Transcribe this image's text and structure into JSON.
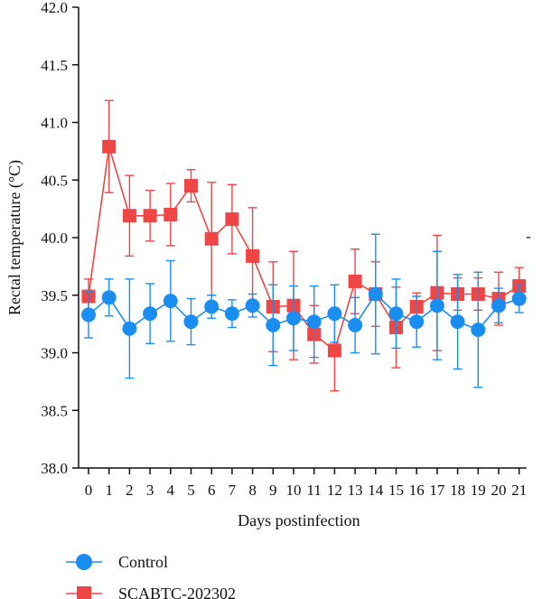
{
  "chart_data": {
    "type": "line",
    "xlabel": "Days postinfection",
    "ylabel": "Rectal temperature (°C)",
    "ylim": [
      38.0,
      42.0
    ],
    "yticks": [
      "38.0",
      "38.5",
      "39.0",
      "39.5",
      "40.0",
      "40.5",
      "41.0",
      "41.5",
      "42.0"
    ],
    "x": [
      0,
      1,
      2,
      3,
      4,
      5,
      6,
      7,
      8,
      9,
      10,
      11,
      12,
      13,
      14,
      15,
      16,
      17,
      18,
      19,
      20,
      21
    ],
    "xticks": [
      "0",
      "1",
      "2",
      "3",
      "4",
      "5",
      "6",
      "7",
      "8",
      "9",
      "10",
      "11",
      "12",
      "13",
      "14",
      "15",
      "16",
      "17",
      "18",
      "19",
      "20",
      "21"
    ],
    "legend_position": "bottom-left",
    "annotation": "-",
    "series": [
      {
        "name": "Control",
        "color": "#1a8ef0",
        "marker": "circle",
        "values": [
          39.33,
          39.48,
          39.21,
          39.34,
          39.45,
          39.27,
          39.4,
          39.34,
          39.41,
          39.24,
          39.3,
          39.27,
          39.34,
          39.24,
          39.51,
          39.34,
          39.27,
          39.41,
          39.27,
          39.2,
          39.41,
          39.47
        ],
        "errors": [
          0.2,
          0.16,
          0.43,
          0.26,
          0.35,
          0.2,
          0.1,
          0.12,
          0.1,
          0.35,
          0.28,
          0.31,
          0.25,
          0.24,
          0.52,
          0.3,
          0.22,
          0.47,
          0.41,
          0.5,
          0.15,
          0.12
        ]
      },
      {
        "name": "SCABTC-202302",
        "color": "#f04545",
        "marker": "square",
        "values": [
          39.49,
          40.79,
          40.19,
          40.19,
          40.2,
          40.45,
          39.99,
          40.16,
          39.84,
          39.4,
          39.41,
          39.16,
          39.02,
          39.62,
          39.51,
          39.22,
          39.4,
          39.52,
          39.51,
          39.51,
          39.47,
          39.58
        ],
        "errors": [
          0.15,
          0.4,
          0.35,
          0.22,
          0.27,
          0.14,
          0.49,
          0.3,
          0.42,
          0.39,
          0.47,
          0.25,
          0.35,
          0.28,
          0.28,
          0.35,
          0.12,
          0.5,
          0.14,
          0.14,
          0.23,
          0.16
        ]
      }
    ]
  }
}
